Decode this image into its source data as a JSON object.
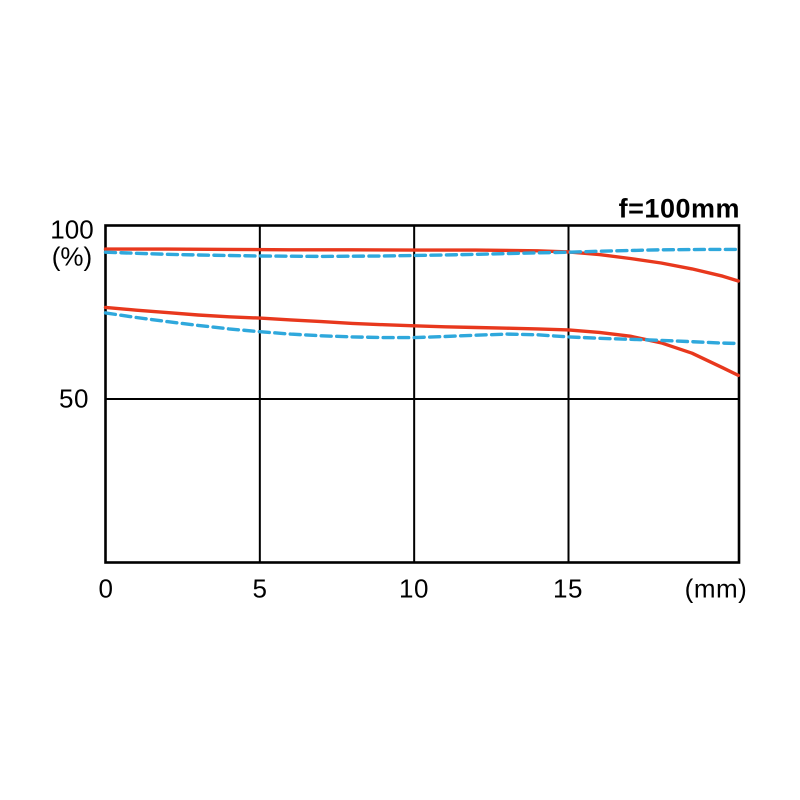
{
  "chart": {
    "title": "f=100mm",
    "y_axis": {
      "tick_100": "100",
      "unit": "(%)",
      "tick_50": "50"
    },
    "x_axis": {
      "tick_0": "0",
      "tick_5": "5",
      "tick_10": "10",
      "tick_15": "15",
      "unit": "(mm)"
    }
  },
  "chart_data": {
    "type": "line",
    "title": "f=100mm",
    "xlabel": "(mm)",
    "ylabel": "(%)",
    "xlim": [
      0,
      20.5
    ],
    "ylim": [
      3,
      100
    ],
    "x_ticks": [
      0,
      5,
      10,
      15
    ],
    "y_ticks": [
      50,
      100
    ],
    "x_gridlines": [
      5,
      10,
      15
    ],
    "y_gridlines": [
      50
    ],
    "grid": true,
    "legend": "none",
    "colors": {
      "solid_line": "#e8381d",
      "dashed_line": "#2fa8dc",
      "axis": "#000000",
      "background": "#ffffff"
    },
    "series": [
      {
        "name": "upper-solid-red",
        "style": "solid",
        "color": "#e8381d",
        "points": [
          [
            0,
            93.2
          ],
          [
            2,
            93.2
          ],
          [
            4,
            93.1
          ],
          [
            6,
            93.0
          ],
          [
            8,
            93.0
          ],
          [
            10,
            92.9
          ],
          [
            12,
            92.9
          ],
          [
            14,
            92.7
          ],
          [
            15,
            92.4
          ],
          [
            16,
            91.6
          ],
          [
            17,
            90.5
          ],
          [
            18,
            89.2
          ],
          [
            19,
            87.5
          ],
          [
            20,
            85.4
          ],
          [
            20.5,
            84.0
          ]
        ]
      },
      {
        "name": "upper-dashed-blue",
        "style": "dashed",
        "color": "#2fa8dc",
        "points": [
          [
            0,
            92.3
          ],
          [
            1,
            92.0
          ],
          [
            2,
            91.7
          ],
          [
            3,
            91.5
          ],
          [
            5,
            91.2
          ],
          [
            7,
            91.1
          ],
          [
            9,
            91.2
          ],
          [
            11,
            91.5
          ],
          [
            13,
            91.9
          ],
          [
            15,
            92.3
          ],
          [
            16,
            92.6
          ],
          [
            17,
            92.8
          ],
          [
            18,
            93.0
          ],
          [
            19.5,
            93.1
          ],
          [
            20.5,
            93.1
          ]
        ]
      },
      {
        "name": "lower-solid-red",
        "style": "solid",
        "color": "#e8381d",
        "points": [
          [
            0,
            76.4
          ],
          [
            1,
            75.6
          ],
          [
            2,
            74.9
          ],
          [
            3,
            74.2
          ],
          [
            4,
            73.7
          ],
          [
            5,
            73.3
          ],
          [
            6,
            72.8
          ],
          [
            7,
            72.3
          ],
          [
            8,
            71.8
          ],
          [
            9,
            71.4
          ],
          [
            10,
            71.1
          ],
          [
            11,
            70.8
          ],
          [
            12,
            70.6
          ],
          [
            13,
            70.4
          ],
          [
            14,
            70.2
          ],
          [
            15,
            69.9
          ],
          [
            16,
            69.2
          ],
          [
            17,
            68.1
          ],
          [
            18,
            66.2
          ],
          [
            19,
            63.2
          ],
          [
            20,
            59.0
          ],
          [
            20.5,
            56.8
          ]
        ]
      },
      {
        "name": "lower-dashed-blue",
        "style": "dashed",
        "color": "#2fa8dc",
        "points": [
          [
            0,
            74.8
          ],
          [
            1,
            73.5
          ],
          [
            2,
            72.3
          ],
          [
            3,
            71.2
          ],
          [
            4,
            70.2
          ],
          [
            5,
            69.4
          ],
          [
            6,
            68.7
          ],
          [
            7,
            68.2
          ],
          [
            8,
            67.9
          ],
          [
            9,
            67.7
          ],
          [
            10,
            67.7
          ],
          [
            11,
            68.0
          ],
          [
            12,
            68.4
          ],
          [
            13,
            68.7
          ],
          [
            14,
            68.5
          ],
          [
            15,
            67.9
          ],
          [
            16,
            67.5
          ],
          [
            17,
            67.2
          ],
          [
            18,
            66.9
          ],
          [
            19,
            66.5
          ],
          [
            20,
            66.1
          ],
          [
            20.5,
            66.0
          ]
        ]
      }
    ]
  }
}
